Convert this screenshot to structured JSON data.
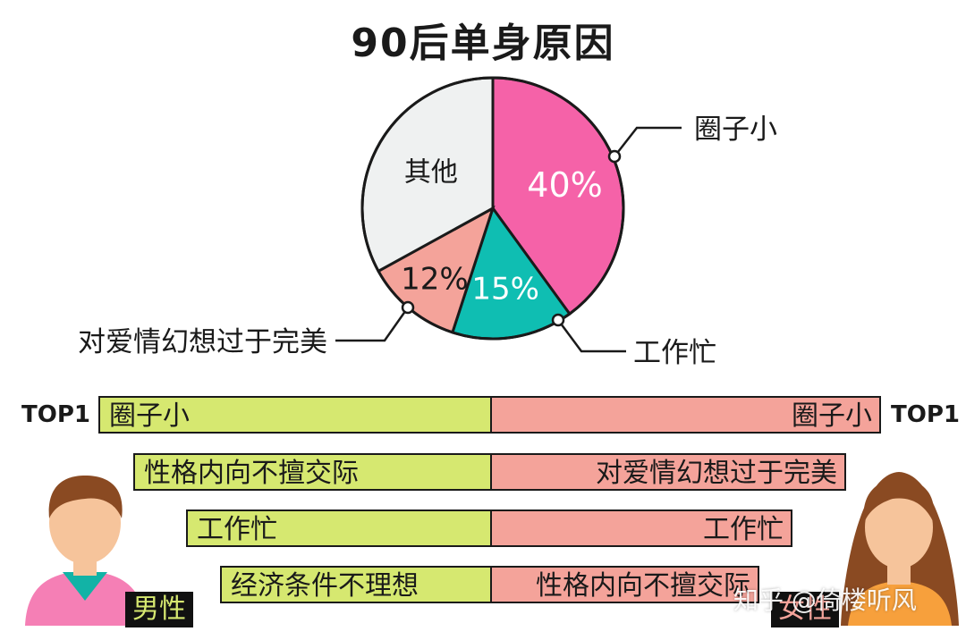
{
  "title": "90后单身原因",
  "chart_data": {
    "type": "pie",
    "title": "90后单身原因",
    "slices": [
      {
        "label": "圈子小",
        "value": 40,
        "display": "40%",
        "color": "#f562a8"
      },
      {
        "label": "工作忙",
        "value": 15,
        "display": "15%",
        "color": "#0fbeb2"
      },
      {
        "label": "对爱情幻想过于完美",
        "value": 12,
        "display": "12%",
        "color": "#f4a39a"
      },
      {
        "label": "其他",
        "value": 33,
        "display": "",
        "color": "#eff1f1"
      }
    ]
  },
  "ranking": {
    "top_label": "TOP1",
    "male_label": "男性",
    "female_label": "女性",
    "male": [
      "圈子小",
      "性格内向不擅交际",
      "工作忙",
      "经济条件不理想"
    ],
    "female": [
      "圈子小",
      "对爱情幻想过于完美",
      "工作忙",
      "性格内向不擅交际"
    ],
    "male_color": "#d6e870",
    "female_color": "#f4a39a"
  },
  "watermark": "知乎 @倚楼听风"
}
